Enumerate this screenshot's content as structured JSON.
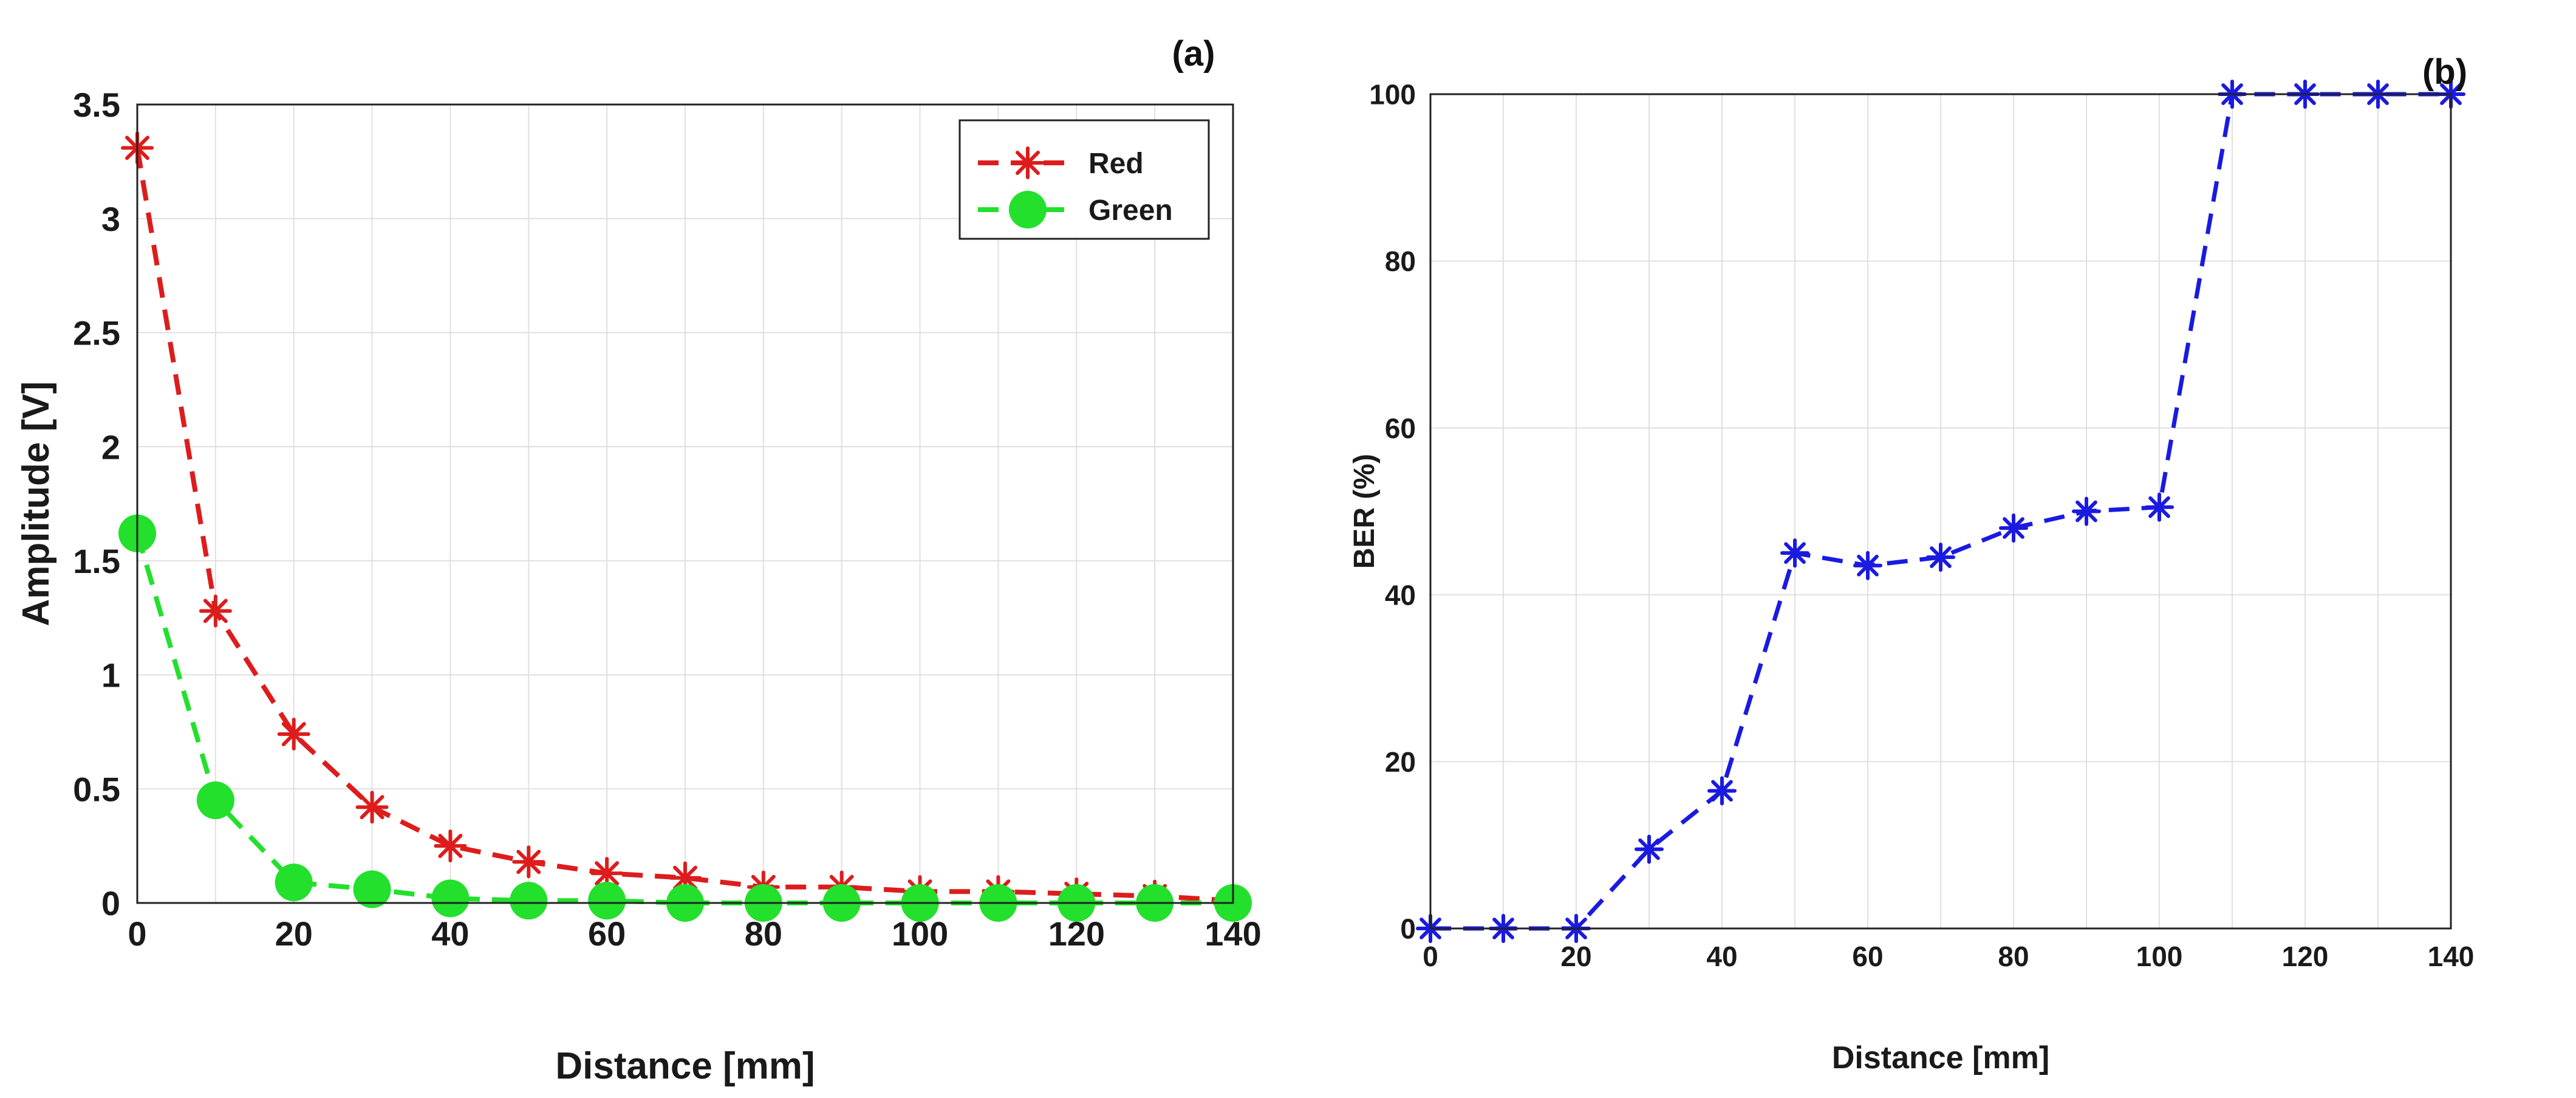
{
  "panels": [
    {
      "id": "a",
      "label": "(a)",
      "xlabel": "Distance [mm]",
      "ylabel": "Amplitude [V]"
    },
    {
      "id": "b",
      "label": "(b)",
      "xlabel": "Distance [mm]",
      "ylabel": "BER (%)"
    }
  ],
  "chart_data": [
    {
      "type": "line",
      "panel": "(a)",
      "xlabel": "Distance [mm]",
      "ylabel": "Amplitude [V]",
      "xlim": [
        0,
        140
      ],
      "ylim": [
        0,
        3.5
      ],
      "xticks": [
        0,
        20,
        40,
        60,
        80,
        100,
        120,
        140
      ],
      "yticks": [
        0,
        0.5,
        1,
        1.5,
        2,
        2.5,
        3,
        3.5
      ],
      "ytick_labels": [
        "0",
        "0.5",
        "1",
        "1.5",
        "2",
        "2.5",
        "3",
        "3.5"
      ],
      "grid": true,
      "legend_position": "top-right",
      "x": [
        0,
        10,
        20,
        30,
        40,
        50,
        60,
        70,
        80,
        90,
        100,
        110,
        120,
        130,
        140
      ],
      "series": [
        {
          "name": "Red",
          "color": "#dd1c1c",
          "marker": "asterisk",
          "values": [
            3.31,
            1.28,
            0.74,
            0.42,
            0.25,
            0.18,
            0.13,
            0.11,
            0.07,
            0.07,
            0.05,
            0.05,
            0.04,
            0.03,
            0.01
          ]
        },
        {
          "name": "Green",
          "color": "#22e02c",
          "marker": "circle",
          "values": [
            1.62,
            0.45,
            0.09,
            0.06,
            0.02,
            0.01,
            0.01,
            0.0,
            0.0,
            0.0,
            0.0,
            0.0,
            0.0,
            0.0,
            0.0
          ]
        }
      ]
    },
    {
      "type": "line",
      "panel": "(b)",
      "xlabel": "Distance [mm]",
      "ylabel": "BER (%)",
      "xlim": [
        0,
        140
      ],
      "ylim": [
        0,
        100
      ],
      "xticks": [
        0,
        20,
        40,
        60,
        80,
        100,
        120,
        140
      ],
      "yticks": [
        0,
        20,
        40,
        60,
        80,
        100
      ],
      "ytick_labels": [
        "0",
        "20",
        "40",
        "60",
        "80",
        "100"
      ],
      "grid": true,
      "x": [
        0,
        10,
        20,
        30,
        40,
        50,
        60,
        70,
        80,
        90,
        100,
        110,
        120,
        130,
        140
      ],
      "series": [
        {
          "color": "#1a1ae0",
          "marker": "asterisk",
          "values": [
            0,
            0,
            0,
            9.5,
            16.5,
            45,
            43.5,
            44.5,
            48,
            50,
            50.5,
            100,
            100,
            100,
            100
          ]
        }
      ]
    }
  ]
}
